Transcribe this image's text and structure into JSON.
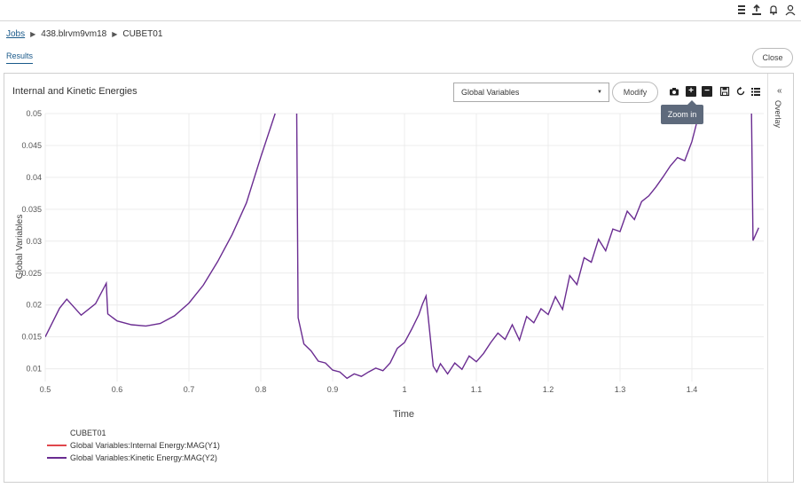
{
  "topbar": {
    "icons": [
      "menu-stack-icon",
      "upload-icon",
      "bell-icon",
      "user-icon"
    ]
  },
  "breadcrumb": {
    "jobs": "Jobs",
    "job_id": "438.blrvm9vm18",
    "item": "CUBET01"
  },
  "tabs": {
    "results": "Results"
  },
  "close_label": "Close",
  "panel": {
    "title": "Internal and Kinetic Energies",
    "select_value": "Global Variables",
    "modify_label": "Modify",
    "tooltip": "Zoom in",
    "overlay_label": "Overlay"
  },
  "colors": {
    "kinetic": "#6a2c91",
    "internal": "#e0474c",
    "accent": "#1a5a8a"
  },
  "chart_data": {
    "type": "line",
    "xlabel": "Time",
    "ylabel": "Global Variables",
    "xlim": [
      0.5,
      1.5
    ],
    "ylim": [
      0.008,
      0.05
    ],
    "x_ticks": [
      "0.5",
      "0.6",
      "0.7",
      "0.8",
      "0.9",
      "1",
      "1.1",
      "1.2",
      "1.3",
      "1.4"
    ],
    "y_ticks": [
      "0.01",
      "0.015",
      "0.02",
      "0.025",
      "0.03",
      "0.035",
      "0.04",
      "0.045",
      "0.05"
    ],
    "grid": true,
    "legend_title": "CUBET01",
    "series": [
      {
        "name": "Global Variables:Internal Energy:MAG(Y1)",
        "x": [],
        "y": []
      },
      {
        "name": "Global Variables:Kinetic Energy:MAG(Y2)",
        "segments": [
          {
            "x": [
              0.5,
              0.52,
              0.53,
              0.55,
              0.57,
              0.585,
              0.587,
              0.6,
              0.62,
              0.64,
              0.66,
              0.68,
              0.7,
              0.72,
              0.74,
              0.76,
              0.78,
              0.8,
              0.82
            ],
            "y": [
              0.015,
              0.0195,
              0.0209,
              0.0184,
              0.0202,
              0.0234,
              0.0186,
              0.0175,
              0.0169,
              0.0167,
              0.0171,
              0.0183,
              0.0203,
              0.0231,
              0.0268,
              0.031,
              0.036,
              0.0432,
              0.05
            ]
          },
          {
            "x": [
              0.85,
              0.852,
              0.86,
              0.87,
              0.88,
              0.89,
              0.9,
              0.91,
              0.92,
              0.93,
              0.94,
              0.95,
              0.96,
              0.97,
              0.98,
              0.99,
              1.0,
              1.01,
              1.02,
              1.025,
              1.03,
              1.04,
              1.045,
              1.05,
              1.06,
              1.07,
              1.08,
              1.09,
              1.1,
              1.11,
              1.12,
              1.13,
              1.14,
              1.15,
              1.16,
              1.17,
              1.18,
              1.19,
              1.2,
              1.21,
              1.22,
              1.23,
              1.24,
              1.25,
              1.26,
              1.27,
              1.28,
              1.29,
              1.3,
              1.31,
              1.32,
              1.33,
              1.34,
              1.35,
              1.36,
              1.37,
              1.38,
              1.39,
              1.4,
              1.41
            ],
            "y": [
              0.05,
              0.018,
              0.0139,
              0.0128,
              0.0112,
              0.0109,
              0.0098,
              0.0095,
              0.0085,
              0.0092,
              0.0088,
              0.0095,
              0.0101,
              0.0097,
              0.0109,
              0.0132,
              0.0141,
              0.0162,
              0.0185,
              0.0201,
              0.0214,
              0.0104,
              0.0095,
              0.0108,
              0.0092,
              0.0109,
              0.0099,
              0.012,
              0.0111,
              0.0124,
              0.0141,
              0.0156,
              0.0146,
              0.0169,
              0.0145,
              0.0182,
              0.0172,
              0.0194,
              0.0185,
              0.0213,
              0.0193,
              0.0246,
              0.0232,
              0.0274,
              0.0267,
              0.0303,
              0.0285,
              0.0319,
              0.0315,
              0.0347,
              0.0334,
              0.0362,
              0.0371,
              0.0385,
              0.0401,
              0.0418,
              0.0431,
              0.0426,
              0.0456,
              0.05
            ]
          },
          {
            "x": [
              1.483,
              1.485,
              1.493
            ],
            "y": [
              0.05,
              0.0301,
              0.0321
            ]
          }
        ]
      }
    ]
  }
}
